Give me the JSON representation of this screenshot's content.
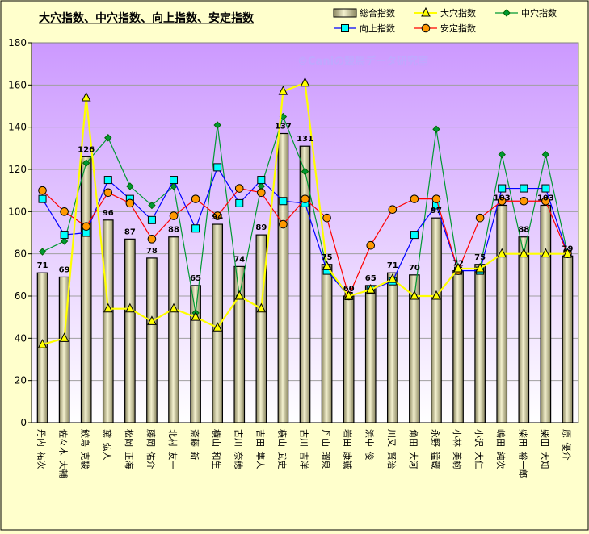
{
  "chart_data": {
    "type": "bar",
    "title": "大穴指数、中穴指数、向上指数、安定指数",
    "watermark": "©Caniの競馬データ研究室",
    "ylim": [
      0,
      180
    ],
    "yticks": [
      0,
      20,
      40,
      60,
      80,
      100,
      120,
      140,
      160,
      180
    ],
    "grid": true,
    "legend_position": "top-right",
    "categories": [
      "丹内 祐次",
      "佐々木 大輔",
      "鮫島 克駿",
      "黛 弘人",
      "松岡 正海",
      "藤岡 佑介",
      "北村 友一",
      "斎藤 新",
      "横山 和生",
      "古川 奈穂",
      "吉田 隼人",
      "横山 武史",
      "古川 吉洋",
      "丹山 瑠泉",
      "岩田 康誠",
      "浜中 俊",
      "川又 賢治",
      "角田 大河",
      "永野 猛蔵",
      "小林 美駒",
      "小沢 大仁",
      "嶋田 純次",
      "柴田 裕一郎",
      "柴田 大知",
      "原 優介"
    ],
    "series": [
      {
        "name": "総合指数",
        "kind": "bar",
        "color": "#e8e4b4",
        "values": [
          71,
          69,
          126,
          96,
          87,
          78,
          88,
          65,
          94,
          74,
          89,
          137,
          131,
          75,
          60,
          65,
          71,
          70,
          97,
          72,
          75,
          103,
          88,
          103,
          79
        ]
      },
      {
        "name": "大穴指数",
        "kind": "line",
        "marker": "triangle",
        "color": "#ffff00",
        "values": [
          37,
          40,
          154,
          54,
          54,
          48,
          54,
          50,
          45,
          60,
          54,
          157,
          161,
          74,
          60,
          63,
          68,
          60,
          60,
          73,
          73,
          80,
          80,
          80,
          80
        ]
      },
      {
        "name": "中穴指数",
        "kind": "line",
        "marker": "diamond",
        "color": "#009933",
        "values": [
          81,
          86,
          123,
          135,
          112,
          103,
          112,
          52,
          141,
          60,
          112,
          145,
          119,
          73,
          60,
          63,
          68,
          60,
          139,
          73,
          73,
          127,
          80,
          127,
          80
        ]
      },
      {
        "name": "向上指数",
        "kind": "line",
        "marker": "square",
        "color": "#0000ff",
        "values": [
          106,
          89,
          90,
          115,
          106,
          96,
          115,
          92,
          121,
          104,
          115,
          105,
          104,
          72,
          60,
          63,
          67,
          89,
          103,
          72,
          72,
          111,
          111,
          111,
          80
        ]
      },
      {
        "name": "安定指数",
        "kind": "line",
        "marker": "circle",
        "color": "#ff0000",
        "values": [
          110,
          100,
          93,
          109,
          104,
          87,
          98,
          106,
          98,
          111,
          109,
          94,
          106,
          97,
          60,
          84,
          101,
          106,
          106,
          72,
          97,
          105,
          105,
          105,
          80
        ]
      }
    ]
  }
}
